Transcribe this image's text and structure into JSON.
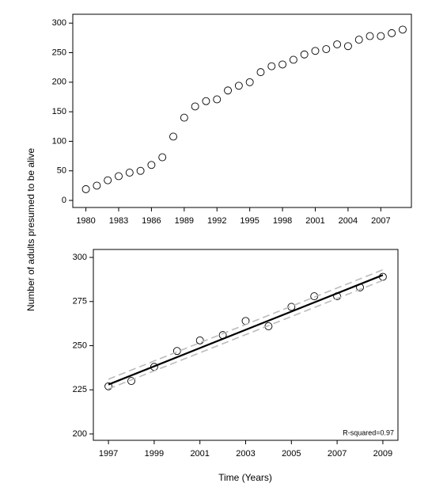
{
  "axis_labels": {
    "y": "Number of adults presumed to be alive",
    "x": "Time (Years)"
  },
  "chart_data": [
    {
      "type": "scatter",
      "x": [
        1980,
        1981,
        1982,
        1983,
        1984,
        1985,
        1986,
        1987,
        1988,
        1989,
        1990,
        1991,
        1992,
        1993,
        1994,
        1995,
        1996,
        1997,
        1998,
        1999,
        2000,
        2001,
        2002,
        2003,
        2004,
        2005,
        2006,
        2007,
        2008,
        2009
      ],
      "series": [
        {
          "kind": "points",
          "color": "#000000",
          "values": [
            19,
            25,
            34,
            41,
            47,
            50,
            60,
            73,
            108,
            140,
            159,
            168,
            171,
            186,
            194,
            200,
            217,
            227,
            230,
            238,
            247,
            253,
            256,
            264,
            261,
            272,
            278,
            278,
            283,
            289
          ]
        }
      ],
      "xlim": [
        1978.8,
        2009.8
      ],
      "ylim": [
        -12,
        315
      ],
      "xticks": [
        1980,
        1983,
        1986,
        1989,
        1992,
        1995,
        1998,
        2001,
        2004,
        2007
      ],
      "yticks": [
        0,
        50,
        100,
        150,
        200,
        250,
        300
      ]
    },
    {
      "type": "scatter",
      "series": [
        {
          "kind": "points",
          "color": "#000000",
          "x": [
            1997,
            1998,
            1999,
            2000,
            2001,
            2002,
            2003,
            2004,
            2005,
            2006,
            2007,
            2008,
            2009
          ],
          "values": [
            227,
            230,
            238,
            247,
            253,
            256,
            264,
            261,
            272,
            278,
            278,
            283,
            289
          ]
        },
        {
          "kind": "line",
          "color": "#bbbbbb",
          "dashed": true,
          "x": [
            1997,
            2009
          ],
          "values": [
            231,
            293
          ]
        },
        {
          "kind": "line",
          "color": "#bbbbbb",
          "dashed": true,
          "x": [
            1997,
            2009
          ],
          "values": [
            225.5,
            287
          ]
        },
        {
          "kind": "line",
          "color": "#000000",
          "dashed": false,
          "x": [
            1997,
            2009
          ],
          "values": [
            228,
            290
          ]
        }
      ],
      "annotation": "R-squared=0.97",
      "xlim": [
        1996.34,
        2009.66
      ],
      "ylim": [
        196.4,
        304.5
      ],
      "xticks": [
        1997,
        1999,
        2001,
        2003,
        2005,
        2007,
        2009
      ],
      "yticks": [
        200,
        225,
        250,
        275,
        300
      ]
    }
  ]
}
